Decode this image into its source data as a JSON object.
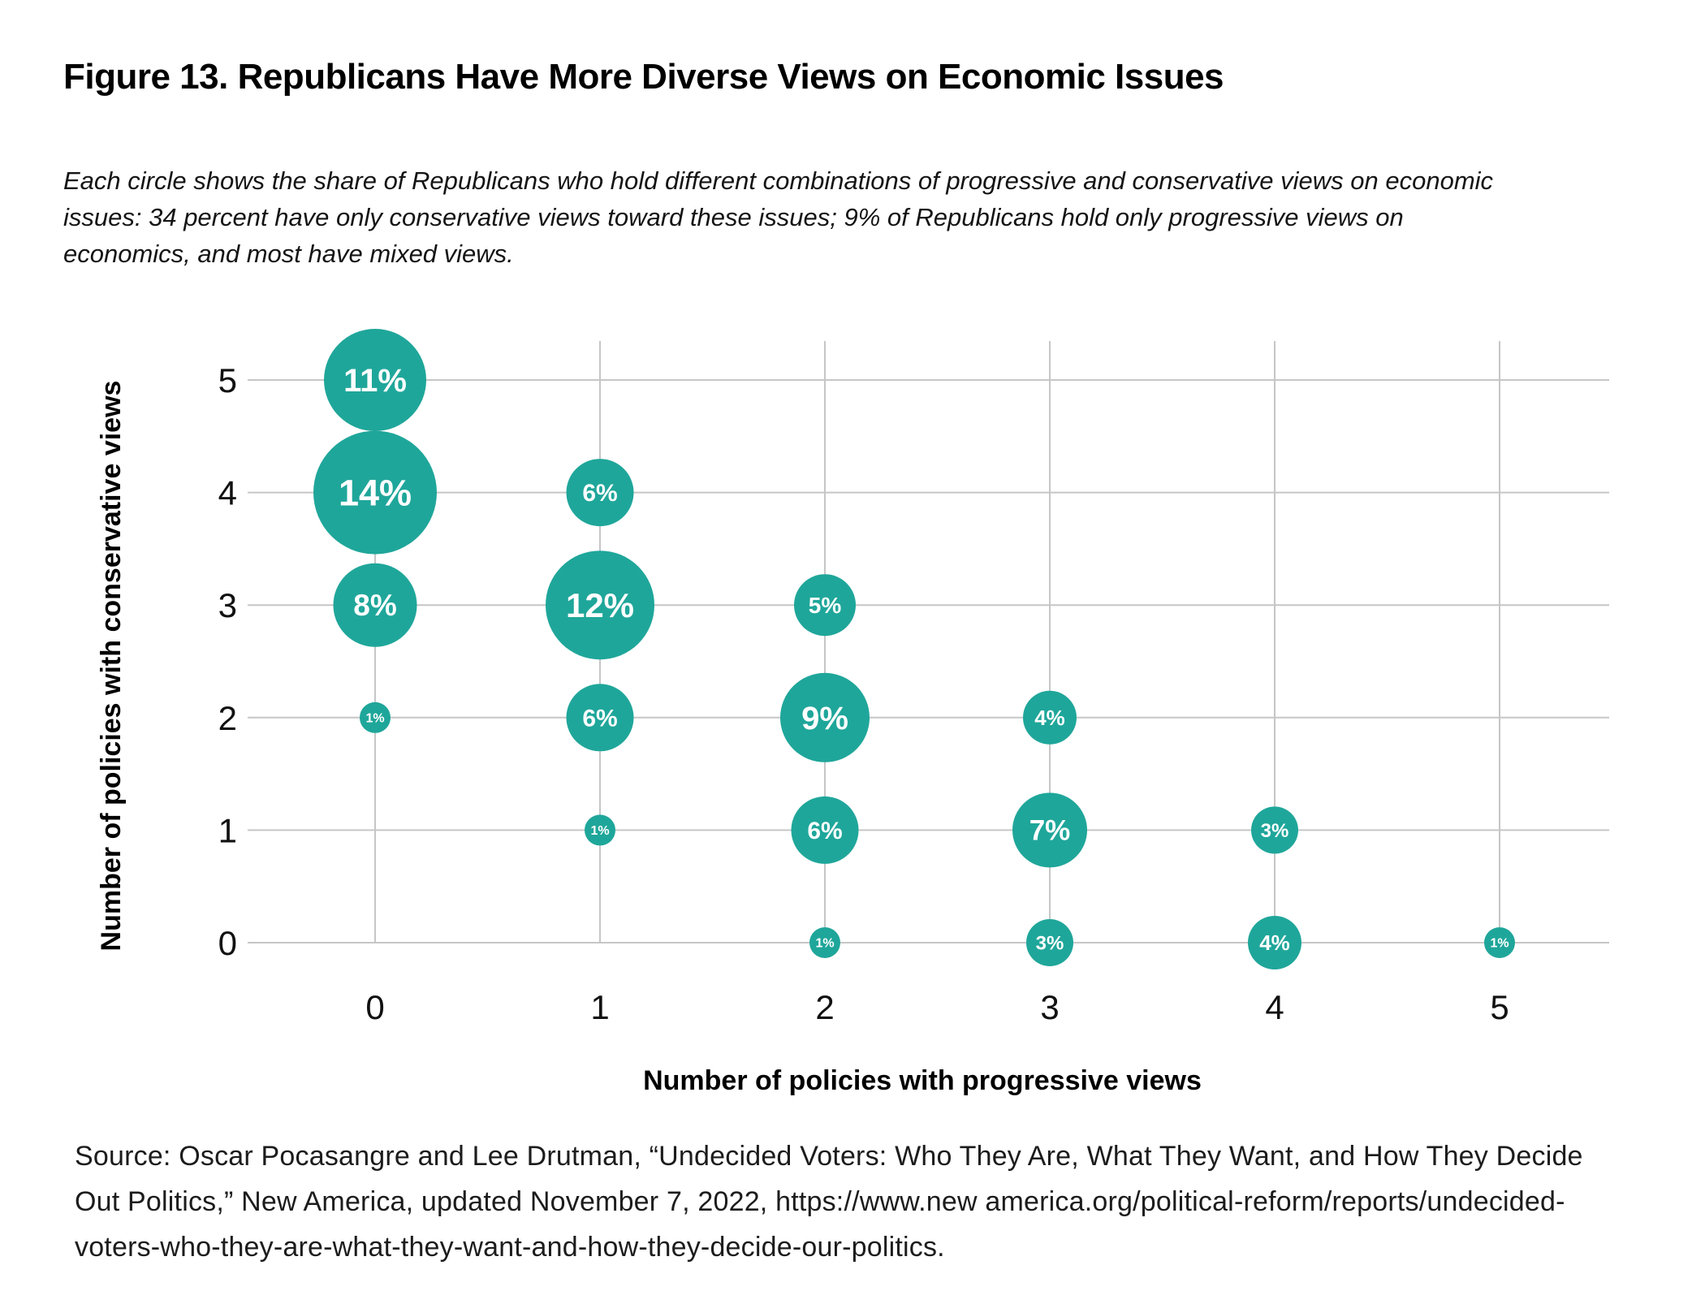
{
  "figure": {
    "title": "Figure 13. Republicans Have More Diverse Views on Economic Issues",
    "subtitle_lines": [
      "Each circle shows the share of Republicans who hold different combinations of progressive and conservative views on economic",
      "issues: 34 percent have only conservative views toward these issues; 9% of Republicans hold only progressive views on",
      "economics, and most have mixed views."
    ],
    "source_lines": [
      "Source: Oscar Pocasangre and Lee Drutman, “Undecided Voters: Who They Are, What They Want, and How They Decide",
      "Out Politics,” New America, updated November 7, 2022, https://www.new america.org/political-reform/reports/undecided-",
      "voters-who-they-are-what-they-want-and-how-they-decide-our-politics."
    ]
  },
  "chart_data": {
    "type": "scatter",
    "subtype": "bubble",
    "title": "",
    "xlabel": "Number of policies with progressive views",
    "ylabel": "Number of policies with conservative views",
    "x_ticks": [
      0,
      1,
      2,
      3,
      4,
      5
    ],
    "y_ticks": [
      0,
      1,
      2,
      3,
      4,
      5
    ],
    "x_tick_labels": [
      "0",
      "1",
      "2",
      "3",
      "4",
      "5"
    ],
    "y_tick_labels": [
      "0",
      "1",
      "2",
      "3",
      "4",
      "5"
    ],
    "xlim": [
      -0.57,
      5.49
    ],
    "ylim": [
      0,
      5.35
    ],
    "grid": true,
    "legend": "none",
    "colors": {
      "bubble": "#1FA69A",
      "bubble_label": "#FFFFFF",
      "gridline": "#C6C6C6",
      "tick_label": "#111111",
      "axis_title": "#000000"
    },
    "points": [
      {
        "x": 0,
        "y": 5,
        "value": 11,
        "label": "11%"
      },
      {
        "x": 0,
        "y": 4,
        "value": 14,
        "label": "14%"
      },
      {
        "x": 0,
        "y": 3,
        "value": 8,
        "label": "8%"
      },
      {
        "x": 0,
        "y": 2,
        "value": 1,
        "label": "1%"
      },
      {
        "x": 1,
        "y": 4,
        "value": 6,
        "label": "6%"
      },
      {
        "x": 1,
        "y": 3,
        "value": 12,
        "label": "12%"
      },
      {
        "x": 1,
        "y": 2,
        "value": 6,
        "label": "6%"
      },
      {
        "x": 1,
        "y": 1,
        "value": 1,
        "label": "1%"
      },
      {
        "x": 2,
        "y": 3,
        "value": 5,
        "label": "5%"
      },
      {
        "x": 2,
        "y": 2,
        "value": 9,
        "label": "9%"
      },
      {
        "x": 2,
        "y": 1,
        "value": 6,
        "label": "6%"
      },
      {
        "x": 2,
        "y": 0,
        "value": 1,
        "label": "1%"
      },
      {
        "x": 3,
        "y": 2,
        "value": 4,
        "label": "4%"
      },
      {
        "x": 3,
        "y": 1,
        "value": 7,
        "label": "7%"
      },
      {
        "x": 3,
        "y": 0,
        "value": 3,
        "label": "3%"
      },
      {
        "x": 4,
        "y": 1,
        "value": 3,
        "label": "3%"
      },
      {
        "x": 4,
        "y": 0,
        "value": 4,
        "label": "4%"
      },
      {
        "x": 5,
        "y": 0,
        "value": 1,
        "label": "1%"
      }
    ]
  }
}
